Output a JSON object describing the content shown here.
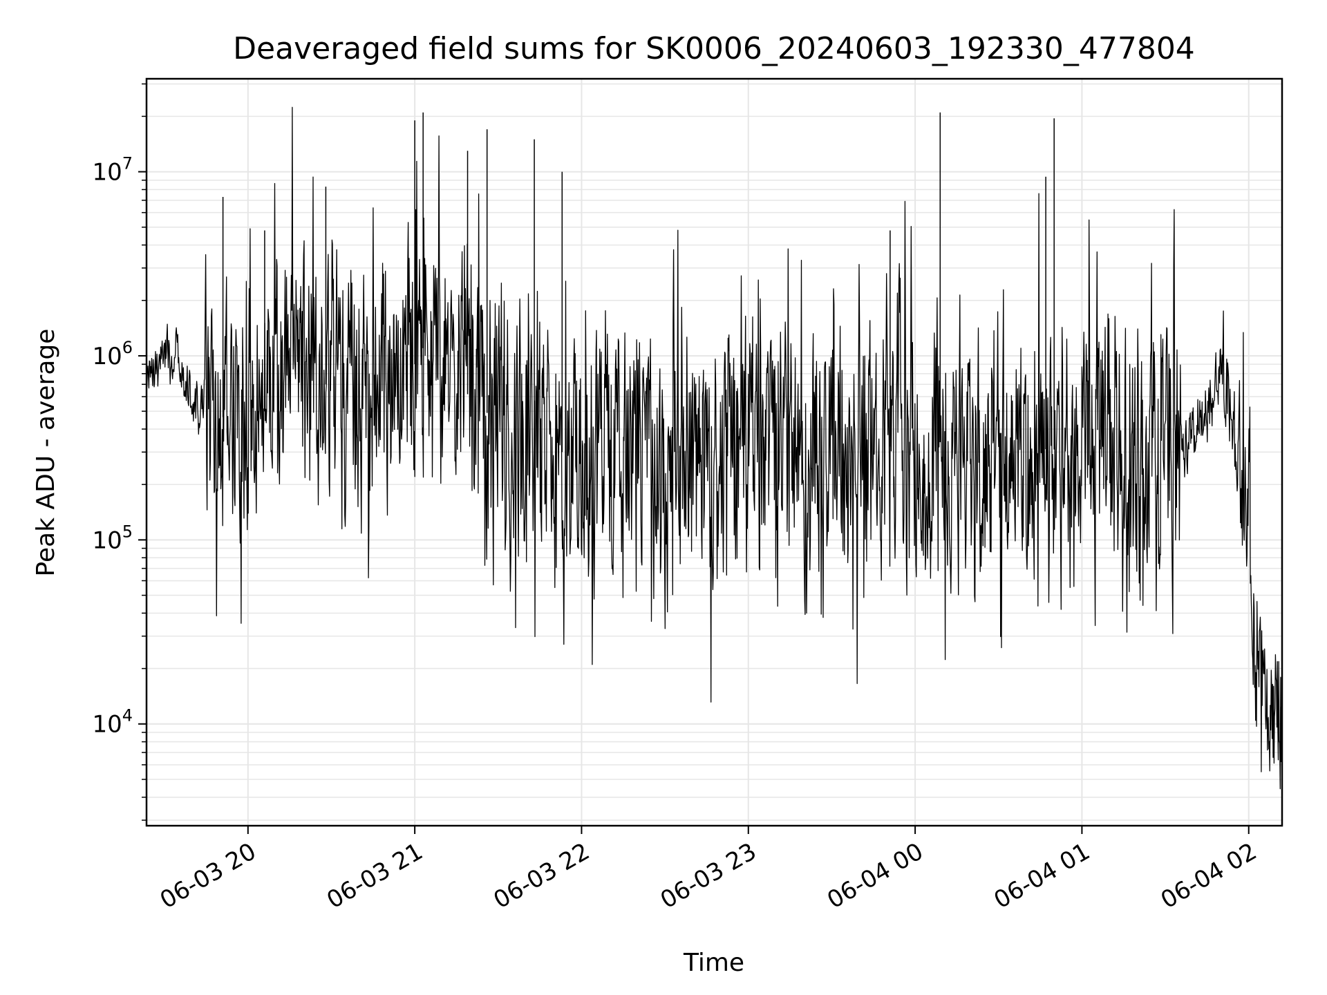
{
  "chart_data": {
    "type": "line",
    "title": "Deaveraged field sums for SK0006_20240603_192330_477804",
    "xlabel": "Time",
    "ylabel": "Peak ADU - average",
    "yscale": "log",
    "grid": true,
    "line_color": "#000000",
    "grid_color": "#e6e6e6",
    "xlim": [
      "2024-06-03 19:23:30",
      "2024-06-04 02:12:00"
    ],
    "ylim": [
      2800,
      32000000
    ],
    "x_ticks": [
      {
        "time": "2024-06-03 20:00",
        "label": "06-03 20"
      },
      {
        "time": "2024-06-03 21:00",
        "label": "06-03 21"
      },
      {
        "time": "2024-06-03 22:00",
        "label": "06-03 22"
      },
      {
        "time": "2024-06-03 23:00",
        "label": "06-03 23"
      },
      {
        "time": "2024-06-04 00:00",
        "label": "06-04 00"
      },
      {
        "time": "2024-06-04 01:00",
        "label": "06-04 01"
      },
      {
        "time": "2024-06-04 02:00",
        "label": "06-04 02"
      }
    ],
    "y_ticks": [
      {
        "value": 10000,
        "base": "10",
        "exp": "4"
      },
      {
        "value": 100000,
        "base": "10",
        "exp": "5"
      },
      {
        "value": 1000000,
        "base": "10",
        "exp": "6"
      },
      {
        "value": 10000000,
        "base": "10",
        "exp": "7"
      }
    ],
    "series": [
      {
        "x": [
          "2024-06-03 19:23:30",
          "2024-06-03 19:30",
          "2024-06-03 19:35",
          "2024-06-03 19:38",
          "2024-06-03 19:40",
          "2024-06-03 19:42",
          "2024-06-03 19:45",
          "2024-06-03 19:48",
          "2024-06-03 19:50",
          "2024-06-03 19:52",
          "2024-06-03 19:55",
          "2024-06-03 19:58",
          "2024-06-03 20:00",
          "2024-06-03 20:04",
          "2024-06-03 20:08",
          "2024-06-03 20:12",
          "2024-06-03 20:16",
          "2024-06-03 20:20",
          "2024-06-03 20:24",
          "2024-06-03 20:28",
          "2024-06-03 20:32",
          "2024-06-03 20:36",
          "2024-06-03 20:40",
          "2024-06-03 20:44",
          "2024-06-03 20:48",
          "2024-06-03 20:52",
          "2024-06-03 20:56",
          "2024-06-03 21:00",
          "2024-06-03 21:03",
          "2024-06-03 21:06",
          "2024-06-03 21:10",
          "2024-06-03 21:15",
          "2024-06-03 21:20",
          "2024-06-03 21:25",
          "2024-06-03 21:30",
          "2024-06-03 21:35",
          "2024-06-03 21:40",
          "2024-06-03 21:45",
          "2024-06-03 21:50",
          "2024-06-03 22:00",
          "2024-06-03 22:10",
          "2024-06-03 22:20",
          "2024-06-03 22:30",
          "2024-06-03 22:40",
          "2024-06-03 22:50",
          "2024-06-03 23:00",
          "2024-06-03 23:10",
          "2024-06-03 23:20",
          "2024-06-03 23:30",
          "2024-06-03 23:40",
          "2024-06-03 23:50",
          "2024-06-04 00:00",
          "2024-06-04 00:08",
          "2024-06-04 00:20",
          "2024-06-04 00:30",
          "2024-06-04 00:40",
          "2024-06-04 00:48",
          "2024-06-04 01:00",
          "2024-06-04 01:10",
          "2024-06-04 01:20",
          "2024-06-04 01:30",
          "2024-06-04 01:40",
          "2024-06-04 01:45",
          "2024-06-04 01:48",
          "2024-06-04 01:50",
          "2024-06-04 01:53",
          "2024-06-04 01:56",
          "2024-06-04 01:58",
          "2024-06-04 02:00",
          "2024-06-04 02:02",
          "2024-06-04 02:04",
          "2024-06-04 02:06",
          "2024-06-04 02:08",
          "2024-06-04 02:10",
          "2024-06-04 02:12"
        ],
        "y": [
          800000,
          1000000,
          900000,
          700000,
          600000,
          500000,
          550000,
          500000,
          450000,
          480000,
          500000,
          470000,
          480000,
          550000,
          700000,
          800000,
          750000,
          850000,
          800000,
          700000,
          750000,
          700000,
          650000,
          600000,
          650000,
          700000,
          800000,
          900000,
          1100000,
          1000000,
          800000,
          700000,
          600000,
          500000,
          450000,
          400000,
          350000,
          320000,
          300000,
          300000,
          300000,
          290000,
          300000,
          310000,
          300000,
          290000,
          300000,
          300000,
          300000,
          310000,
          320000,
          330000,
          340000,
          330000,
          320000,
          320000,
          310000,
          310000,
          300000,
          300000,
          310000,
          400000,
          550000,
          700000,
          800000,
          600000,
          350000,
          250000,
          150000,
          30000,
          20000,
          14000,
          12000,
          15000,
          12000
        ]
      }
    ],
    "peaks": [
      {
        "x": "2024-06-03 19:51",
        "y": 7300000
      },
      {
        "x": "2024-06-03 20:06",
        "y": 4800000
      },
      {
        "x": "2024-06-03 20:28",
        "y": 8300000
      },
      {
        "x": "2024-06-03 21:00",
        "y": 19000000
      },
      {
        "x": "2024-06-03 21:03",
        "y": 21000000
      },
      {
        "x": "2024-06-03 21:19",
        "y": 13000000
      },
      {
        "x": "2024-06-03 21:26",
        "y": 17000000
      },
      {
        "x": "2024-06-03 21:43",
        "y": 15000000
      },
      {
        "x": "2024-06-03 21:53",
        "y": 10000000
      },
      {
        "x": "2024-06-04 00:09",
        "y": 21000000
      },
      {
        "x": "2024-06-04 00:47",
        "y": 9400000
      },
      {
        "x": "2024-06-04 00:50",
        "y": 19500000
      },
      {
        "x": "2024-06-03 23:51",
        "y": 4800000
      }
    ]
  }
}
